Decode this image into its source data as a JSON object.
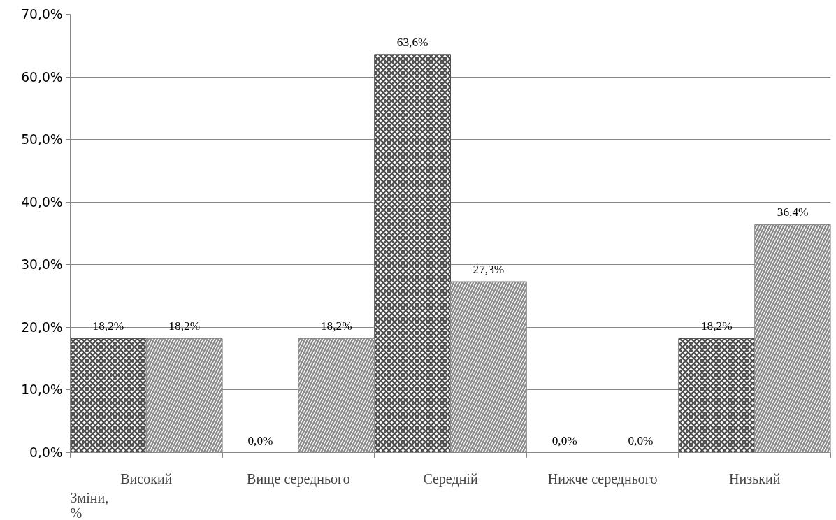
{
  "chart_data": {
    "type": "bar",
    "annotations": [
      "Зміни, %"
    ],
    "categories": [
      "Високий",
      "Вище середнього",
      "Середній",
      "Нижче середнього",
      "Низький"
    ],
    "series": [
      {
        "color": "#505050",
        "values": [
          18.2,
          0.0,
          63.6,
          0.0,
          18.2
        ],
        "value_labels": [
          "18,2%",
          "0,0%",
          "63,6%",
          "0,0%",
          "18,2%"
        ]
      },
      {
        "color": "#8a8a8a",
        "values": [
          18.2,
          18.2,
          27.3,
          0.0,
          36.4
        ],
        "value_labels": [
          "18,2%",
          "18,2%",
          "27,3%",
          "0,0%",
          "36,4%"
        ]
      }
    ],
    "ylim": [
      0,
      70
    ],
    "yticks": [
      {
        "value": 0,
        "label": "0,0%"
      },
      {
        "value": 10,
        "label": "10,0%"
      },
      {
        "value": 20,
        "label": "20,0%"
      },
      {
        "value": 30,
        "label": "30,0%"
      },
      {
        "value": 40,
        "label": "40,0%"
      },
      {
        "value": 50,
        "label": "50,0%"
      },
      {
        "value": 60,
        "label": "60,0%"
      },
      {
        "value": 70,
        "label": "70,0%"
      }
    ],
    "grid": "y"
  }
}
